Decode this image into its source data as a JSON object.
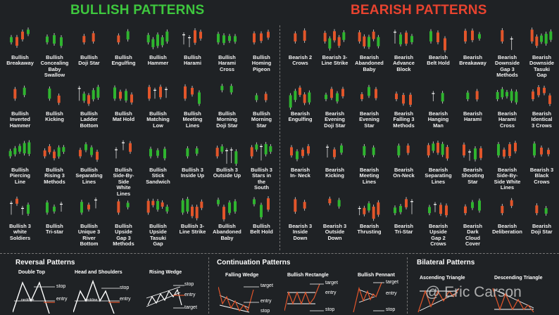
{
  "bullish_title": "BULLISH PATTERNS",
  "bearish_title": "BEARISH PATTERNS",
  "colors": {
    "bull": "#2fb52f",
    "bear": "#e2552a",
    "bg": "#1f2225"
  },
  "bullish_patterns": [
    [
      "Bullish",
      "Breakaway"
    ],
    [
      "Bullish",
      "Concealing",
      "Baby",
      "Swallow"
    ],
    [
      "Bullish",
      "Doji Star"
    ],
    [
      "Bullish",
      "Engulfing"
    ],
    [
      "Bullish",
      "Hammer"
    ],
    [
      "Bullish",
      "Harami"
    ],
    [
      "Bullish",
      "Harami",
      "Cross"
    ],
    [
      "Bullish",
      "Homing",
      "Pigeon"
    ],
    [
      "Bullish",
      "Inverted",
      "Hammer"
    ],
    [
      "Bullish",
      "Kicking"
    ],
    [
      "Bullish",
      "Ladder",
      "Bottom"
    ],
    [
      "Bullish",
      "Mat Hold"
    ],
    [
      "Bullish",
      "Matching",
      "Low"
    ],
    [
      "Bullish",
      "Meeting",
      "Lines"
    ],
    [
      "Bullish",
      "Morning",
      "Doji Star"
    ],
    [
      "Bullish",
      "Morning",
      "Star"
    ],
    [
      "Bullish",
      "Piercing",
      "Line"
    ],
    [
      "Bullish",
      "Rising 3",
      "Methods"
    ],
    [
      "Bullish",
      "Separating",
      "Lines"
    ],
    [
      "Bullish",
      "Side-By-",
      "Side",
      "White",
      "Lines"
    ],
    [
      "Bullish",
      "Stick",
      "Sandwich"
    ],
    [
      "Bullish 3",
      "Inside Up"
    ],
    [
      "Bullish 3",
      "Outside Up"
    ],
    [
      "Bullish 3",
      "Stars in",
      "the",
      "South"
    ],
    [
      "Bullish 3",
      "white",
      "Soldiers"
    ],
    [
      "Bullish",
      "Tri-star"
    ],
    [
      "Bullish",
      "Unique 3",
      "River",
      "Bottom"
    ],
    [
      "Bullish",
      "Upside",
      "Gap 3",
      "Methods"
    ],
    [
      "Bullish",
      "Upside",
      "Tasuki",
      "Gap"
    ],
    [
      "Bullish 3-",
      "Line Strike"
    ],
    [
      "Bullish",
      "Abandoned",
      "Baby"
    ],
    [
      "Bullish",
      "Belt Hold"
    ]
  ],
  "bearish_patterns": [
    [
      "Bearish 2",
      "Crows"
    ],
    [
      "Bearish 3-",
      "Line Strike"
    ],
    [
      "Bearish",
      "Abandoned",
      "Baby"
    ],
    [
      "Bearish",
      "Advance",
      "Block"
    ],
    [
      "Bearish",
      "Belt Hold"
    ],
    [
      "Bearish",
      "Breakaway"
    ],
    [
      "Bearish",
      "Downside",
      "Gap 3",
      "Methods"
    ],
    [
      "Bearish",
      "Downside",
      "Tasuki",
      "Gap"
    ],
    [
      "Bearish",
      "Engulfing"
    ],
    [
      "Bearish",
      "Evening",
      "Doji Star"
    ],
    [
      "Bearish",
      "Evening",
      "Star"
    ],
    [
      "Bearish",
      "Falling 3",
      "Methods"
    ],
    [
      "Bearish",
      "Hanging",
      "Man"
    ],
    [
      "Bearish",
      "Harami"
    ],
    [
      "Bearish",
      "Harami",
      "Cross"
    ],
    [
      "Bearish",
      "Identical",
      "3 Crows"
    ],
    [
      "Bearish",
      "In- Neck"
    ],
    [
      "Bearish",
      "Kicking"
    ],
    [
      "Bearish",
      "Meeting",
      "Lines"
    ],
    [
      "Bearish",
      "On-Neck"
    ],
    [
      "Bearish",
      "Separating",
      "Lines"
    ],
    [
      "Bearish",
      "Shooting",
      "Star"
    ],
    [
      "Bearish",
      "Side-By-",
      "Side White",
      "Lines"
    ],
    [
      "Bearish 3",
      "Black",
      "Crows"
    ],
    [
      "Bearish 3",
      "Inside",
      "Down"
    ],
    [
      "Bearish 3",
      "Outside",
      "Down"
    ],
    [
      "Bearish",
      "Thrusting"
    ],
    [
      "Bearish",
      "Tri-Star"
    ],
    [
      "Bearish",
      "Upside",
      "Gap 2",
      "Crows"
    ],
    [
      "Bearish",
      "Dark",
      "Cloud",
      "Cover"
    ],
    [
      "Bearish",
      "Deliberation"
    ],
    [
      "Bearish",
      "Doji Star"
    ]
  ],
  "reversal": {
    "title": "Reversal Patterns",
    "double_top": {
      "title": "Double Top",
      "stop": "stop",
      "entry": "entry",
      "neckline": "neckline"
    },
    "head_shoulders": {
      "title": "Head and Shoulders",
      "stop": "stop",
      "entry": "entry",
      "neckline": "neckline"
    },
    "rising_wedge": {
      "title": "Rising Wedge",
      "stop": "stop",
      "entry": "entry",
      "target": "target"
    }
  },
  "continuation": {
    "title": "Continuation Patterns",
    "falling_wedge": {
      "title": "Falling Wedge",
      "target": "target",
      "entry": "entry",
      "stop": "stop"
    },
    "bull_rect": {
      "title": "Bullish Rectangle",
      "target": "target",
      "entry": "entry",
      "stop": "stop"
    },
    "bull_pennant": {
      "title": "Bullish Pennant",
      "target": "target",
      "entry": "entry",
      "stop": "stop"
    }
  },
  "bilateral": {
    "title": "Bilateral Patterns",
    "asc_triangle": {
      "title": "Ascending Triangle"
    },
    "desc_triangle": {
      "title": "Descending Triangle"
    }
  },
  "watermark": "@ Eric Carson"
}
